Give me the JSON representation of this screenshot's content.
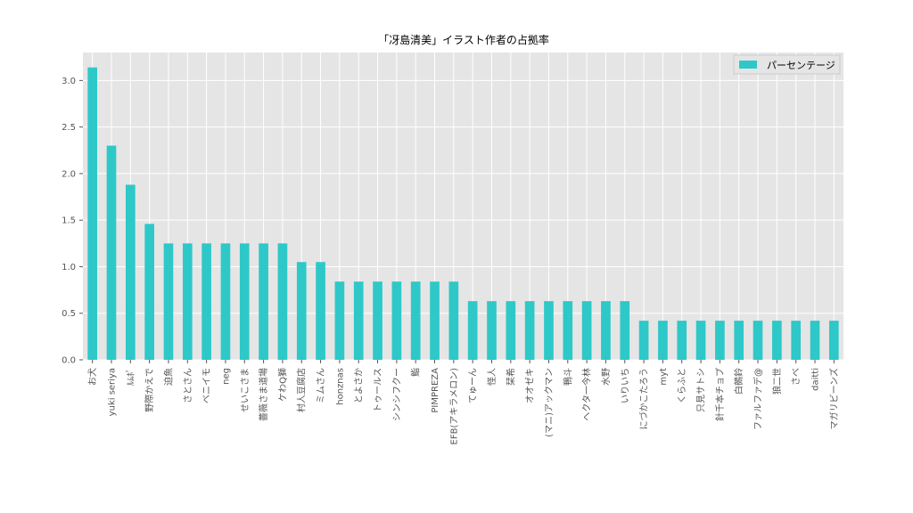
{
  "chart_data": {
    "type": "bar",
    "title": "「冴島清美」イラスト作者の占拠率",
    "xlabel": "",
    "ylabel": "",
    "ylim": [
      0,
      3.3
    ],
    "yticks": [
      "0.0",
      "0.5",
      "1.0",
      "1.5",
      "2.0",
      "2.5",
      "3.0"
    ],
    "grid": true,
    "legend_position": "top-right",
    "bar_color": "#2ec8c8",
    "categories": [
      "お犬",
      "yuki seriya",
      "ﾙﾑﾎﾟ",
      "野際かえで",
      "迫魚",
      "さとさん",
      "ベニイモ",
      "neg",
      "せいこさま",
      "薔薇さま道場",
      "ケわQ獅",
      "村人豆腐店",
      "ミムさん",
      "honznas",
      "とよさか",
      "トゥールス",
      "シンシフクー",
      "鮨",
      "PIMPREZA",
      "EFB(アキラメロン)",
      "てゅーん",
      "怪人",
      "栞希",
      "オオゼキ",
      "(マニ)アックマン",
      "鴨斗",
      "ヘクタ一今林",
      "水野",
      "いりいち",
      "にづかこたろう",
      "myt",
      "くらふと",
      "只見サトシ",
      "針千本チョプ",
      "白鵺鈴",
      "ファルファデ@",
      "狼二世",
      "さべ",
      "daitti",
      "マガリビーンズ"
    ],
    "series": [
      {
        "name": "パーセンテージ",
        "values": [
          3.14,
          2.3,
          1.88,
          1.46,
          1.25,
          1.25,
          1.25,
          1.25,
          1.25,
          1.25,
          1.25,
          1.05,
          1.05,
          0.84,
          0.84,
          0.84,
          0.84,
          0.84,
          0.84,
          0.84,
          0.63,
          0.63,
          0.63,
          0.63,
          0.63,
          0.63,
          0.63,
          0.63,
          0.63,
          0.42,
          0.42,
          0.42,
          0.42,
          0.42,
          0.42,
          0.42,
          0.42,
          0.42,
          0.42,
          0.42
        ]
      }
    ]
  }
}
